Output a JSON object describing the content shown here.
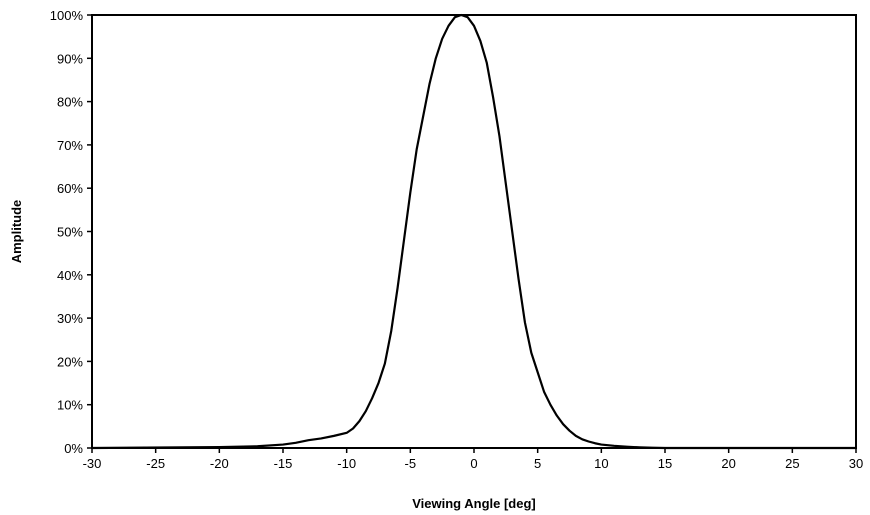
{
  "chart_data": {
    "type": "line",
    "title": "",
    "xlabel": "Viewing Angle [deg]",
    "ylabel": "Amplitude",
    "xlim": [
      -30,
      30
    ],
    "ylim": [
      0,
      100
    ],
    "x_ticks": [
      -30,
      -25,
      -20,
      -15,
      -10,
      -5,
      0,
      5,
      10,
      15,
      20,
      25,
      30
    ],
    "y_ticks": [
      0,
      10,
      20,
      30,
      40,
      50,
      60,
      70,
      80,
      90,
      100
    ],
    "y_tick_labels": [
      "0%",
      "10%",
      "20%",
      "30%",
      "40%",
      "50%",
      "60%",
      "70%",
      "80%",
      "90%",
      "100%"
    ],
    "grid": false,
    "legend": "none",
    "line_color": "#000000",
    "series": [
      {
        "x": [
          -30,
          -20,
          -17,
          -15,
          -14,
          -13,
          -12,
          -11,
          -10,
          -9.5,
          -9,
          -8.5,
          -8,
          -7.5,
          -7,
          -6.5,
          -6,
          -5.5,
          -5,
          -4.5,
          -4,
          -3.5,
          -3,
          -2.5,
          -2,
          -1.5,
          -1,
          -0.5,
          0,
          0.5,
          1,
          1.5,
          2,
          2.5,
          3,
          3.5,
          4,
          4.5,
          5,
          5.5,
          6,
          6.5,
          7,
          7.5,
          8,
          8.5,
          9,
          9.5,
          10,
          11,
          12,
          13,
          14,
          15,
          17,
          20,
          30
        ],
        "y": [
          0,
          0.2,
          0.4,
          0.8,
          1.2,
          1.8,
          2.2,
          2.8,
          3.5,
          4.5,
          6.2,
          8.5,
          11.5,
          15,
          19.5,
          27,
          37,
          48,
          59,
          69,
          76.5,
          84,
          90,
          94.5,
          97.5,
          99.5,
          100,
          99.5,
          97.5,
          94,
          89,
          81,
          72,
          61,
          50,
          39,
          29,
          22,
          17.5,
          13,
          10,
          7.5,
          5.5,
          4,
          2.8,
          2,
          1.5,
          1.1,
          0.8,
          0.5,
          0.3,
          0.15,
          0.05,
          0,
          0,
          0,
          0
        ]
      }
    ]
  }
}
